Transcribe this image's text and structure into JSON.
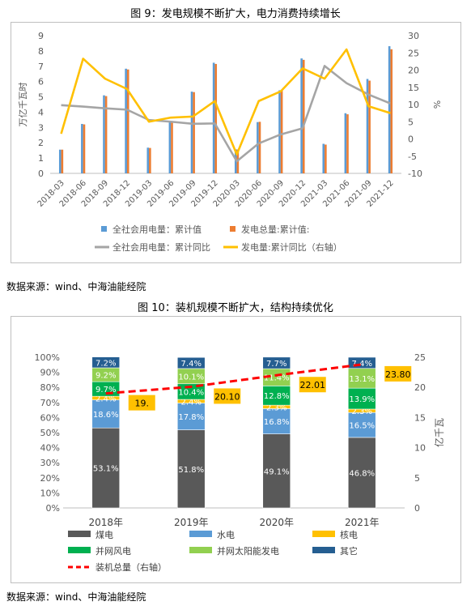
{
  "figure1": {
    "title": "图 9：发电规模不断扩大，电力消费持续增长",
    "source": "数据来源：wind、中海油能经院",
    "chart_data": {
      "type": "bar",
      "categories": [
        "2018-03",
        "2018-06",
        "2018-09",
        "2018-12",
        "2019-03",
        "2019-06",
        "2019-09",
        "2019-12",
        "2020-03",
        "2020-06",
        "2020-09",
        "2020-12",
        "2021-03",
        "2021-06",
        "2021-09",
        "2021-12"
      ],
      "ylabel": "万亿千瓦时",
      "y2label": "%",
      "ylim": [
        0,
        9
      ],
      "yticks": [
        0,
        1,
        2,
        3,
        4,
        5,
        6,
        7,
        8,
        9
      ],
      "y2lim": [
        -10,
        30
      ],
      "y2ticks": [
        -10,
        -5,
        0,
        5,
        10,
        15,
        20,
        25,
        30
      ],
      "series": [
        {
          "name": "全社会用电量：累计值",
          "kind": "bar",
          "axis": "left",
          "color": "#5b9bd5",
          "values": [
            1.55,
            3.23,
            5.1,
            6.84,
            1.68,
            3.36,
            5.34,
            7.23,
            1.57,
            3.35,
            5.43,
            7.51,
            1.93,
            3.93,
            6.17,
            8.31
          ]
        },
        {
          "name": "发电总量:累计值:",
          "kind": "bar",
          "axis": "left",
          "color": "#ed7d31",
          "values": [
            1.55,
            3.2,
            5.05,
            6.79,
            1.66,
            3.36,
            5.31,
            7.15,
            1.56,
            3.37,
            5.4,
            7.42,
            1.88,
            3.86,
            6.06,
            8.11
          ]
        },
        {
          "name": "全社会用电量：累计同比",
          "kind": "line",
          "axis": "right",
          "color": "#a5a5a5",
          "values": [
            9.8,
            9.4,
            8.9,
            8.5,
            5.5,
            5.0,
            4.4,
            4.5,
            -6.5,
            -1.3,
            1.3,
            3.1,
            21.2,
            16.2,
            12.9,
            10.3
          ]
        },
        {
          "name": "发电量:累计同比（右轴）",
          "kind": "line",
          "axis": "right",
          "color": "#ffc000",
          "values": [
            1.5,
            23.3,
            17.5,
            14.5,
            5.0,
            6.2,
            6.5,
            11.0,
            -4.5,
            11.0,
            13.8,
            20.5,
            17.5,
            26.0,
            9.5,
            7.5
          ]
        }
      ],
      "legend": "bottom",
      "grid": false
    }
  },
  "figure2": {
    "title": "图 10：装机规模不断扩大，结构持续优化",
    "source": "数据来源：wind、中海油能经院",
    "chart_data": {
      "type": "bar",
      "categories": [
        "2018年",
        "2019年",
        "2020年",
        "2021年"
      ],
      "ylabel": "",
      "y2label": "亿千瓦",
      "ylim": [
        0,
        100
      ],
      "yticks": [
        "0%",
        "10%",
        "20%",
        "30%",
        "40%",
        "50%",
        "60%",
        "70%",
        "80%",
        "90%",
        "100%"
      ],
      "y2lim": [
        0,
        25
      ],
      "y2ticks": [
        0,
        5,
        10,
        15,
        20,
        25
      ],
      "stacked": true,
      "series": [
        {
          "name": "煤电",
          "color": "#595959",
          "values": [
            53.1,
            51.8,
            49.1,
            46.8
          ],
          "labels": [
            "53.1%",
            "51.8%",
            "49.1%",
            "46.8%"
          ]
        },
        {
          "name": "水电",
          "color": "#5b9bd5",
          "values": [
            18.6,
            17.8,
            16.8,
            16.5
          ],
          "labels": [
            "18.6%",
            "17.8%",
            "16.8%",
            "16.5%"
          ]
        },
        {
          "name": "核电",
          "color": "#ffc000",
          "values": [
            2.4,
            2.4,
            2.3,
            2.3
          ],
          "labels": [
            "2.4%",
            "2.4%",
            "2.3%",
            "2.3%"
          ]
        },
        {
          "name": "并网风电",
          "color": "#00b050",
          "values": [
            9.7,
            10.4,
            12.8,
            13.9
          ],
          "labels": [
            "9.7%",
            "10.4%",
            "12.8%",
            "13.9%"
          ]
        },
        {
          "name": "并网太阳能发电",
          "color": "#92d050",
          "values": [
            9.2,
            10.1,
            11.4,
            13.1
          ],
          "labels": [
            "9.2%",
            "10.1%",
            "11.4%",
            "13.1%"
          ]
        },
        {
          "name": "其它",
          "color": "#255e91",
          "values": [
            7.2,
            7.4,
            7.7,
            7.4
          ],
          "labels": [
            "7.2%",
            "7.4%",
            "7.7%",
            "7.4%"
          ]
        }
      ],
      "line": {
        "name": "装机总量（右轴）",
        "color": "#ff0000",
        "values": [
          19.0,
          20.1,
          22.01,
          23.8
        ],
        "labels": [
          "19.",
          "20.10",
          "22.01",
          "23.80"
        ]
      },
      "legend": "bottom"
    }
  }
}
